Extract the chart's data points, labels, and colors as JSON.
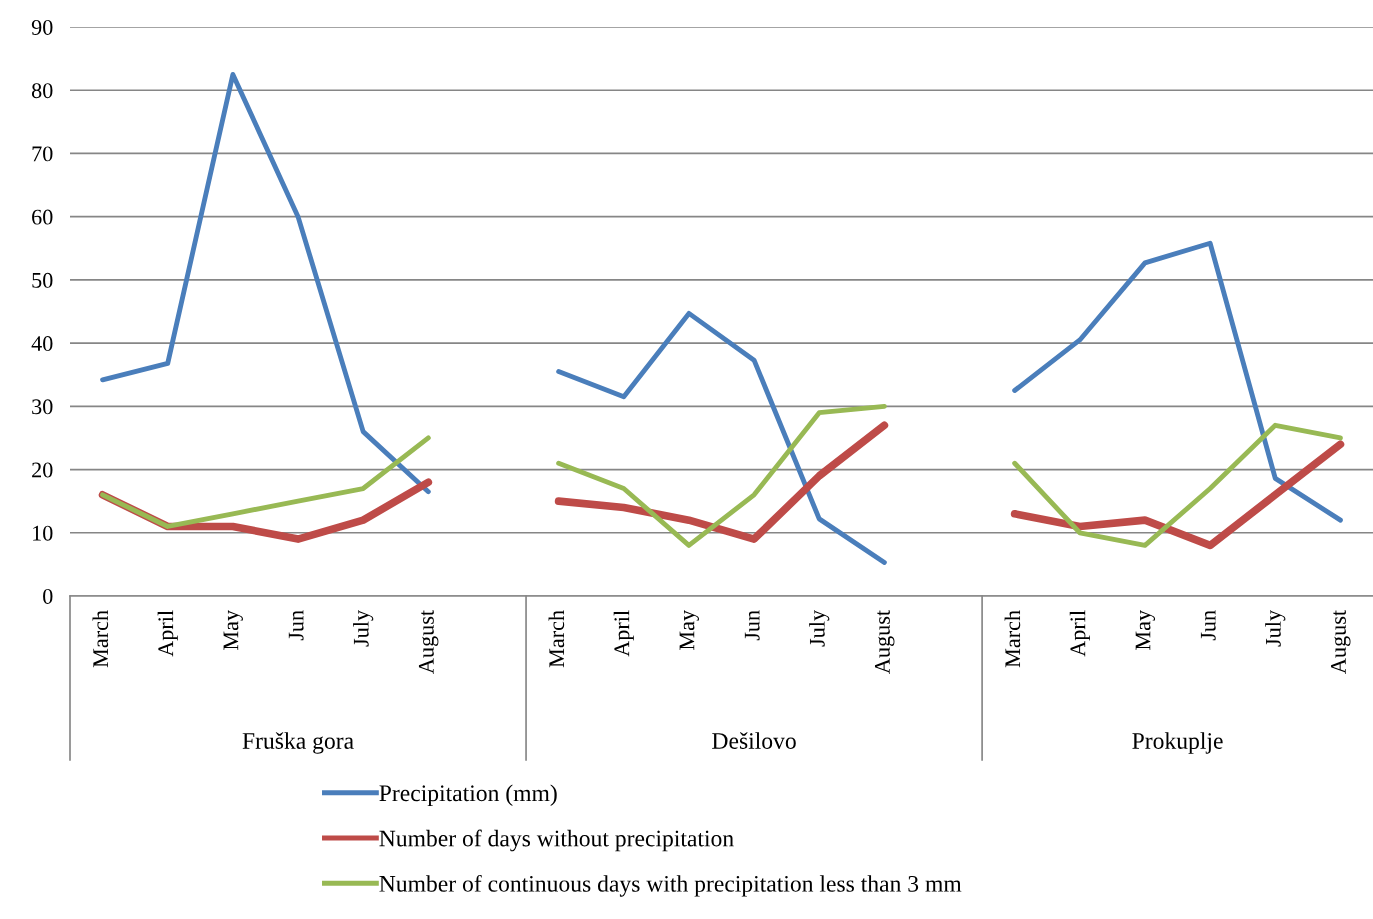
{
  "chart_data": {
    "type": "line",
    "categories": [
      "March",
      "April",
      "May",
      "Jun",
      "July",
      "August",
      null,
      "March",
      "April",
      "May",
      "Jun",
      "July",
      "August",
      null,
      "March",
      "April",
      "May",
      "Jun",
      "July",
      "August"
    ],
    "annotations": [
      "Fruška gora",
      "Dešilovo",
      "Prokuplje"
    ],
    "series": [
      {
        "name": "Precipitation (mm)",
        "color": "#4a7ebb",
        "values": [
          34.2,
          36.8,
          82.5,
          60,
          26,
          16.5,
          null,
          35.5,
          31.5,
          44.7,
          37.3,
          12.2,
          5.3,
          null,
          32.5,
          40.5,
          52.7,
          55.8,
          18.6,
          12
        ]
      },
      {
        "name": "Number of days without precipitation",
        "color": "#be4b48",
        "values": [
          16,
          11,
          11,
          9,
          12,
          18,
          null,
          15,
          14,
          12,
          9,
          19,
          27,
          null,
          13,
          11,
          12,
          8,
          16,
          24
        ]
      },
      {
        "name": "Number of continuous days with precipitation less than 3 mm",
        "color": "#98b954",
        "values": [
          16,
          11,
          13,
          15,
          17,
          25,
          null,
          21,
          17,
          8,
          16,
          29,
          30,
          null,
          21,
          10,
          8,
          17,
          27,
          25
        ]
      }
    ],
    "ylim": [
      0,
      90
    ],
    "yticks": [
      0,
      10,
      20,
      30,
      40,
      50,
      60,
      70,
      80,
      90
    ],
    "grid": "y",
    "legend": "bottom",
    "marker": "none",
    "line_style": "solid"
  }
}
